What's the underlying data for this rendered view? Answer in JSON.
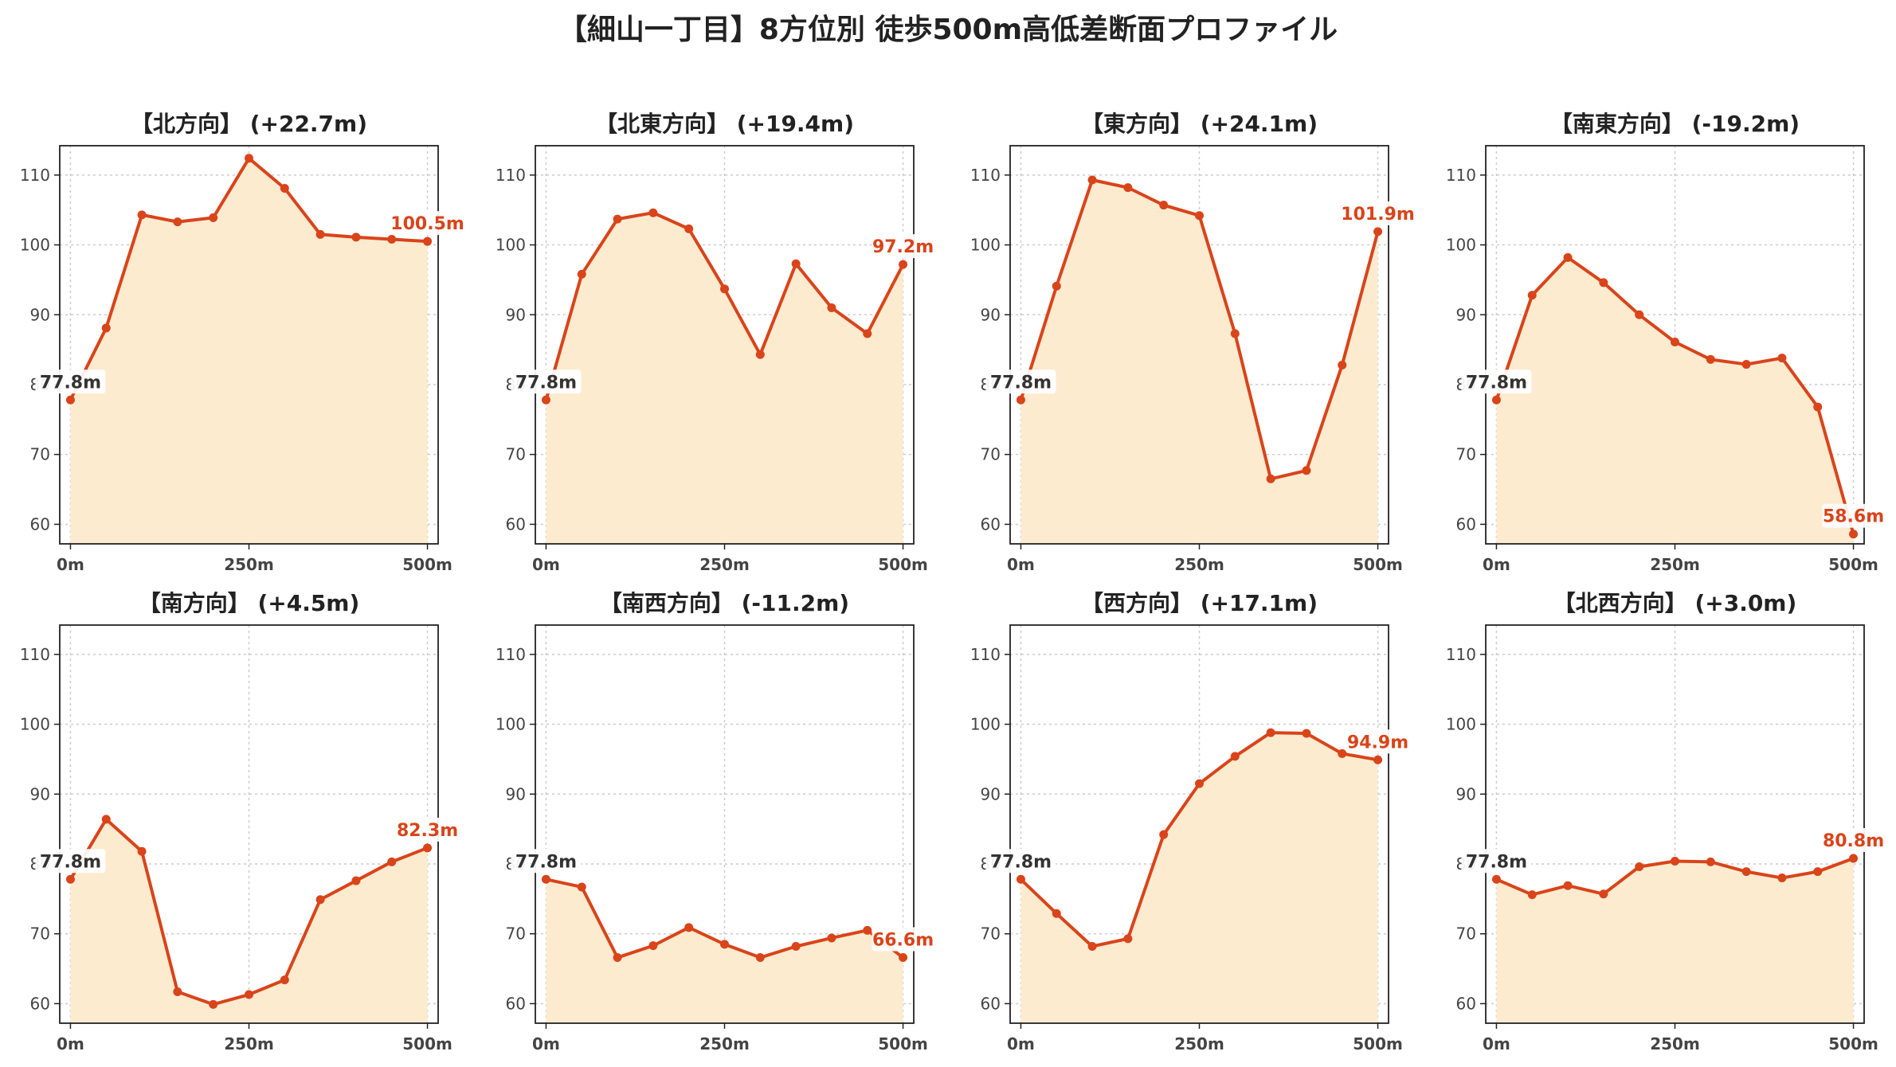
{
  "title": "【細山一丁目】8方位別 徒歩500m高低差断面プロファイル",
  "colors": {
    "line": "#d9441a",
    "fill": "#fdebd0",
    "start_label": "#333333",
    "end_label": "#d9441a"
  },
  "chart_data": [
    {
      "type": "area",
      "title": "【北方向】 (+22.7m)",
      "x": [
        0,
        50,
        100,
        150,
        200,
        250,
        300,
        350,
        400,
        450,
        500
      ],
      "x_ticks": [
        0,
        250,
        500
      ],
      "x_tick_labels": [
        "0m",
        "250m",
        "500m"
      ],
      "y_ticks": [
        60,
        70,
        80,
        90,
        100,
        110
      ],
      "ylim": [
        57.2,
        114.2
      ],
      "xlim": [
        -15,
        515
      ],
      "grid": true,
      "values": [
        77.8,
        88.1,
        104.3,
        103.3,
        103.9,
        112.4,
        108.1,
        101.5,
        101.1,
        100.8,
        100.5
      ],
      "start_label": "77.8m",
      "end_label": "100.5m"
    },
    {
      "type": "area",
      "title": "【北東方向】 (+19.4m)",
      "x": [
        0,
        50,
        100,
        150,
        200,
        250,
        300,
        350,
        400,
        450,
        500
      ],
      "x_ticks": [
        0,
        250,
        500
      ],
      "x_tick_labels": [
        "0m",
        "250m",
        "500m"
      ],
      "y_ticks": [
        60,
        70,
        80,
        90,
        100,
        110
      ],
      "ylim": [
        57.2,
        114.2
      ],
      "xlim": [
        -15,
        515
      ],
      "grid": true,
      "values": [
        77.8,
        95.8,
        103.7,
        104.6,
        102.3,
        93.7,
        84.3,
        97.3,
        91.0,
        87.3,
        97.2
      ],
      "start_label": "77.8m",
      "end_label": "97.2m"
    },
    {
      "type": "area",
      "title": "【東方向】 (+24.1m)",
      "x": [
        0,
        50,
        100,
        150,
        200,
        250,
        300,
        350,
        400,
        450,
        500
      ],
      "x_ticks": [
        0,
        250,
        500
      ],
      "x_tick_labels": [
        "0m",
        "250m",
        "500m"
      ],
      "y_ticks": [
        60,
        70,
        80,
        90,
        100,
        110
      ],
      "ylim": [
        57.2,
        114.2
      ],
      "xlim": [
        -15,
        515
      ],
      "grid": true,
      "values": [
        77.8,
        94.1,
        109.3,
        108.2,
        105.7,
        104.2,
        87.3,
        66.5,
        67.7,
        82.8,
        101.9
      ],
      "start_label": "77.8m",
      "end_label": "101.9m"
    },
    {
      "type": "area",
      "title": "【南東方向】 (-19.2m)",
      "x": [
        0,
        50,
        100,
        150,
        200,
        250,
        300,
        350,
        400,
        450,
        500
      ],
      "x_ticks": [
        0,
        250,
        500
      ],
      "x_tick_labels": [
        "0m",
        "250m",
        "500m"
      ],
      "y_ticks": [
        60,
        70,
        80,
        90,
        100,
        110
      ],
      "ylim": [
        57.2,
        114.2
      ],
      "xlim": [
        -15,
        515
      ],
      "grid": true,
      "values": [
        77.8,
        92.8,
        98.2,
        94.6,
        90.0,
        86.1,
        83.6,
        82.9,
        83.8,
        76.8,
        58.6
      ],
      "start_label": "77.8m",
      "end_label": "58.6m"
    },
    {
      "type": "area",
      "title": "【南方向】 (+4.5m)",
      "x": [
        0,
        50,
        100,
        150,
        200,
        250,
        300,
        350,
        400,
        450,
        500
      ],
      "x_ticks": [
        0,
        250,
        500
      ],
      "x_tick_labels": [
        "0m",
        "250m",
        "500m"
      ],
      "y_ticks": [
        60,
        70,
        80,
        90,
        100,
        110
      ],
      "ylim": [
        57.2,
        114.2
      ],
      "xlim": [
        -15,
        515
      ],
      "grid": true,
      "values": [
        77.8,
        86.4,
        81.8,
        61.7,
        59.9,
        61.3,
        63.4,
        74.9,
        77.6,
        80.3,
        82.3
      ],
      "start_label": "77.8m",
      "end_label": "82.3m"
    },
    {
      "type": "area",
      "title": "【南西方向】 (-11.2m)",
      "x": [
        0,
        50,
        100,
        150,
        200,
        250,
        300,
        350,
        400,
        450,
        500
      ],
      "x_ticks": [
        0,
        250,
        500
      ],
      "x_tick_labels": [
        "0m",
        "250m",
        "500m"
      ],
      "y_ticks": [
        60,
        70,
        80,
        90,
        100,
        110
      ],
      "ylim": [
        57.2,
        114.2
      ],
      "xlim": [
        -15,
        515
      ],
      "grid": true,
      "values": [
        77.8,
        76.7,
        66.6,
        68.3,
        70.9,
        68.5,
        66.6,
        68.2,
        69.4,
        70.5,
        66.6
      ],
      "start_label": "77.8m",
      "end_label": "66.6m"
    },
    {
      "type": "area",
      "title": "【西方向】 (+17.1m)",
      "x": [
        0,
        50,
        100,
        150,
        200,
        250,
        300,
        350,
        400,
        450,
        500
      ],
      "x_ticks": [
        0,
        250,
        500
      ],
      "x_tick_labels": [
        "0m",
        "250m",
        "500m"
      ],
      "y_ticks": [
        60,
        70,
        80,
        90,
        100,
        110
      ],
      "ylim": [
        57.2,
        114.2
      ],
      "xlim": [
        -15,
        515
      ],
      "grid": true,
      "values": [
        77.8,
        72.9,
        68.2,
        69.3,
        84.2,
        91.5,
        95.4,
        98.8,
        98.7,
        95.8,
        94.9
      ],
      "start_label": "77.8m",
      "end_label": "94.9m"
    },
    {
      "type": "area",
      "title": "【北西方向】 (+3.0m)",
      "x": [
        0,
        50,
        100,
        150,
        200,
        250,
        300,
        350,
        400,
        450,
        500
      ],
      "x_ticks": [
        0,
        250,
        500
      ],
      "x_tick_labels": [
        "0m",
        "250m",
        "500m"
      ],
      "y_ticks": [
        60,
        70,
        80,
        90,
        100,
        110
      ],
      "ylim": [
        57.2,
        114.2
      ],
      "xlim": [
        -15,
        515
      ],
      "grid": true,
      "values": [
        77.8,
        75.6,
        76.9,
        75.7,
        79.6,
        80.4,
        80.3,
        78.9,
        78.0,
        78.9,
        80.8
      ],
      "start_label": "77.8m",
      "end_label": "80.8m"
    }
  ]
}
